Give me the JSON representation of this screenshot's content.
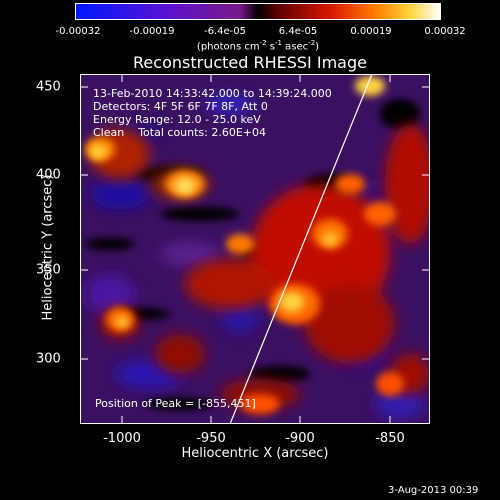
{
  "colorbar": {
    "ticks": [
      "-0.00032",
      "-0.00019",
      "-6.4e-05",
      "6.4e-05",
      "0.00019",
      "0.00032"
    ],
    "unit_main": "(photons cm",
    "unit_sup1": "-2",
    "unit_mid": " s",
    "unit_sup2": "-1",
    "unit_end": " asec",
    "unit_sup3": "-2",
    "unit_close": ")"
  },
  "title": "Reconstructed RHESSI Image",
  "info": {
    "time_range": "13-Feb-2010 14:33:42.000 to 14:39:24.000",
    "detectors": "Detectors: 4F 5F 6F 7F 8F, Att 0",
    "energy": "Energy Range: 12.0 - 25.0 keV",
    "method": "Clean    Total counts: 2.60E+04"
  },
  "peak": "Position of Peak = [-855,451]",
  "axes": {
    "xlabel": "Heliocentric X (arcsec)",
    "ylabel": "Heliocentric Y (arcsec)",
    "xticks": [
      "-1000",
      "-950",
      "-900",
      "-850"
    ],
    "yticks": [
      "450",
      "400",
      "350",
      "300"
    ]
  },
  "footer": "3-Aug-2013 00:39",
  "colors": {
    "background": "#000000",
    "foreground": "#ffffff"
  }
}
